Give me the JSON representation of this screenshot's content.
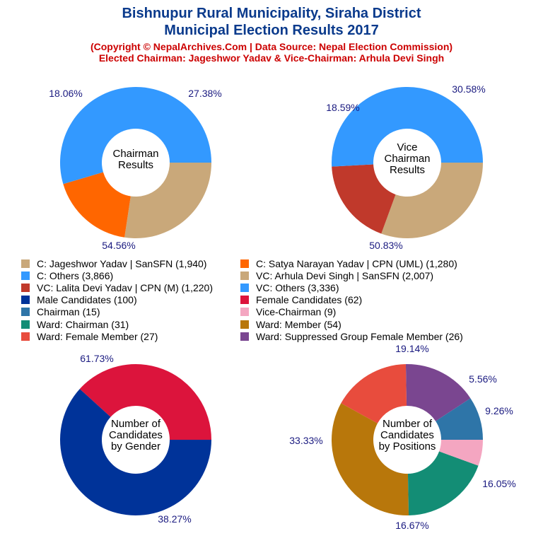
{
  "header": {
    "title_line1": "Bishnupur Rural Municipality, Siraha District",
    "title_line2": "Municipal Election Results 2017",
    "subtitle_line1": "(Copyright © NepalArchives.Com | Data Source: Nepal Election Commission)",
    "subtitle_line2": "Elected Chairman: Jageshwor Yadav & Vice-Chairman: Arhula Devi Singh"
  },
  "chart_data": [
    {
      "type": "pie",
      "center_label": [
        "Chairman",
        "Results"
      ],
      "categories": [
        "C: Jageshwor Yadav | SanSFN",
        "C: Satya Narayan Yadav | CPN (UML)",
        "C: Others"
      ],
      "values": [
        1940,
        1280,
        3866
      ],
      "percent_labels": [
        "27.38%",
        "18.06%",
        "54.56%"
      ],
      "colors": [
        "#c9a87a",
        "#ff6600",
        "#3399ff"
      ]
    },
    {
      "type": "pie",
      "center_label": [
        "Vice",
        "Chairman",
        "Results"
      ],
      "categories": [
        "VC: Arhula Devi Singh | SanSFN",
        "VC: Lalita Devi Yadav | CPN (M)",
        "VC: Others"
      ],
      "values": [
        2007,
        1220,
        3336
      ],
      "percent_labels": [
        "30.58%",
        "18.59%",
        "50.83%"
      ],
      "colors": [
        "#c9a87a",
        "#c0392b",
        "#3399ff"
      ]
    },
    {
      "type": "pie",
      "center_label": [
        "Number of",
        "Candidates",
        "by Gender"
      ],
      "categories": [
        "Female Candidates",
        "Male Candidates"
      ],
      "values": [
        62,
        100
      ],
      "percent_labels": [
        "38.27%",
        "61.73%"
      ],
      "colors": [
        "#dc143c",
        "#003399"
      ]
    },
    {
      "type": "pie",
      "center_label": [
        "Number of",
        "Candidates",
        "by Positions"
      ],
      "categories": [
        "Chairman",
        "Ward: Suppressed Group Female Member",
        "Ward: Female Member",
        "Ward: Member",
        "Ward: Chairman",
        "Vice-Chairman"
      ],
      "values": [
        15,
        26,
        27,
        54,
        31,
        9
      ],
      "percent_labels": [
        "9.26%",
        "16.05%",
        "16.67%",
        "33.33%",
        "19.14%",
        "5.56%"
      ],
      "colors": [
        "#2e75a8",
        "#7a4690",
        "#e84c3d",
        "#b8770b",
        "#138d75",
        "#f4a6c1"
      ]
    }
  ],
  "legend": [
    {
      "label": "C: Jageshwor Yadav | SanSFN (1,940)",
      "color": "#c9a87a"
    },
    {
      "label": "C: Satya Narayan Yadav | CPN (UML) (1,280)",
      "color": "#ff6600"
    },
    {
      "label": "C: Others (3,866)",
      "color": "#3399ff"
    },
    {
      "label": "VC: Arhula Devi Singh | SanSFN (2,007)",
      "color": "#c9a87a"
    },
    {
      "label": "VC: Lalita Devi Yadav | CPN (M) (1,220)",
      "color": "#c0392b"
    },
    {
      "label": "VC: Others (3,336)",
      "color": "#3399ff"
    },
    {
      "label": "Male Candidates (100)",
      "color": "#003399"
    },
    {
      "label": "Female Candidates (62)",
      "color": "#dc143c"
    },
    {
      "label": "Chairman (15)",
      "color": "#2e75a8"
    },
    {
      "label": "Vice-Chairman (9)",
      "color": "#f4a6c1"
    },
    {
      "label": "Ward: Chairman (31)",
      "color": "#138d75"
    },
    {
      "label": "Ward: Member (54)",
      "color": "#b8770b"
    },
    {
      "label": "Ward: Female Member (27)",
      "color": "#e84c3d"
    },
    {
      "label": "Ward: Suppressed Group Female Member (26)",
      "color": "#7a4690"
    }
  ]
}
